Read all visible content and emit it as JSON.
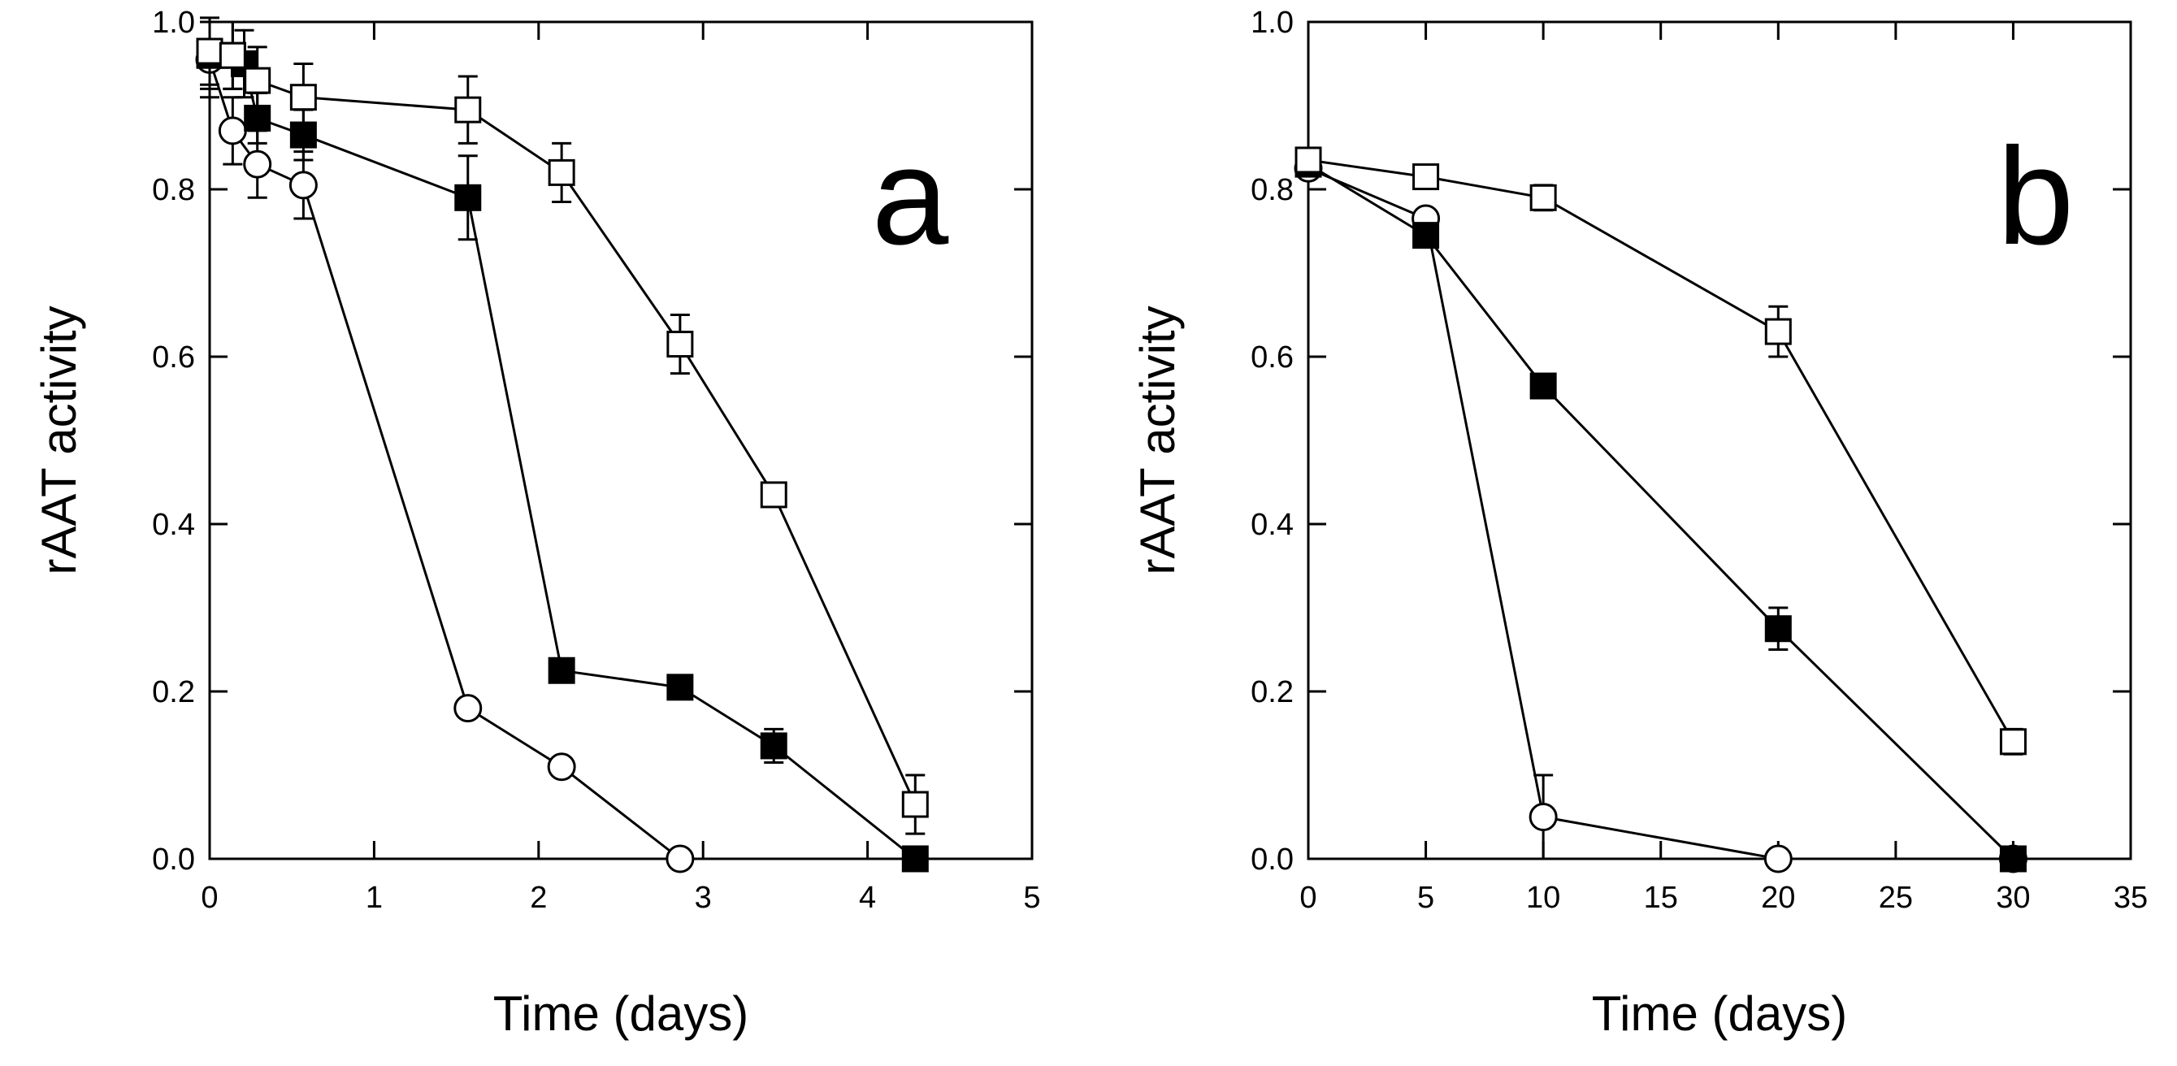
{
  "chart_data": [
    {
      "type": "line",
      "panel_label": "a",
      "xlabel": "Time (days)",
      "ylabel": "rAAT activity",
      "xlim": [
        0,
        5
      ],
      "ylim": [
        0,
        1.0
      ],
      "x_ticks": [
        0,
        1,
        2,
        3,
        4,
        5
      ],
      "y_ticks": [
        0.0,
        0.2,
        0.4,
        0.6,
        0.8,
        1.0
      ],
      "x_tick_labels": [
        "0",
        "1",
        "2",
        "3",
        "4",
        "5"
      ],
      "y_tick_labels": [
        "0.0",
        "0.2",
        "0.4",
        "0.6",
        "0.8",
        "1.0"
      ],
      "series": [
        {
          "name": "open circles",
          "marker": "circle-open",
          "x": [
            0.0,
            0.14,
            0.29,
            0.57,
            1.57,
            2.14,
            2.86
          ],
          "y": [
            0.955,
            0.87,
            0.83,
            0.805,
            0.18,
            0.11,
            0.0
          ],
          "err": [
            0.045,
            0.04,
            0.04,
            0.04,
            0.0,
            0.0,
            0.0
          ]
        },
        {
          "name": "filled squares",
          "marker": "square-filled",
          "x": [
            0.0,
            0.14,
            0.21,
            0.29,
            0.57,
            1.57,
            2.14,
            2.86,
            3.43,
            4.29
          ],
          "y": [
            0.96,
            0.96,
            0.95,
            0.885,
            0.865,
            0.79,
            0.225,
            0.205,
            0.135,
            0.0
          ],
          "err": [
            0.04,
            0.04,
            0.04,
            0.03,
            0.03,
            0.05,
            0.0,
            0.0,
            0.02,
            0.0
          ]
        },
        {
          "name": "open squares",
          "marker": "square-open",
          "x": [
            0.0,
            0.14,
            0.29,
            0.57,
            1.57,
            2.14,
            2.86,
            3.43,
            4.29
          ],
          "y": [
            0.965,
            0.96,
            0.93,
            0.91,
            0.895,
            0.82,
            0.615,
            0.435,
            0.065
          ],
          "err": [
            0.04,
            0.04,
            0.04,
            0.04,
            0.04,
            0.035,
            0.035,
            0.0,
            0.035
          ]
        }
      ]
    },
    {
      "type": "line",
      "panel_label": "b",
      "xlabel": "Time (days)",
      "ylabel": "rAAT activity",
      "xlim": [
        0,
        35
      ],
      "ylim": [
        0,
        1.0
      ],
      "x_ticks": [
        0,
        5,
        10,
        15,
        20,
        25,
        30,
        35
      ],
      "y_ticks": [
        0.0,
        0.2,
        0.4,
        0.6,
        0.8,
        1.0
      ],
      "x_tick_labels": [
        "0",
        "5",
        "10",
        "15",
        "20",
        "25",
        "30",
        "35"
      ],
      "y_tick_labels": [
        "0.0",
        "0.2",
        "0.4",
        "0.6",
        "0.8",
        "1.0"
      ],
      "series": [
        {
          "name": "open circles",
          "marker": "circle-open",
          "x": [
            0,
            5,
            10,
            20,
            30
          ],
          "y": [
            0.825,
            0.765,
            0.05,
            0.0,
            0.0
          ],
          "err": [
            0.0,
            0.0,
            0.05,
            0.0,
            0.0
          ]
        },
        {
          "name": "filled squares",
          "marker": "square-filled",
          "x": [
            0,
            5,
            10,
            20,
            30
          ],
          "y": [
            0.83,
            0.745,
            0.565,
            0.275,
            0.0
          ],
          "err": [
            0.0,
            0.0,
            0.0,
            0.025,
            0.0
          ]
        },
        {
          "name": "open squares",
          "marker": "square-open",
          "x": [
            0,
            5,
            10,
            20,
            30
          ],
          "y": [
            0.835,
            0.815,
            0.79,
            0.63,
            0.14
          ],
          "err": [
            0.0,
            0.0,
            0.015,
            0.03,
            0.015
          ]
        }
      ]
    }
  ]
}
